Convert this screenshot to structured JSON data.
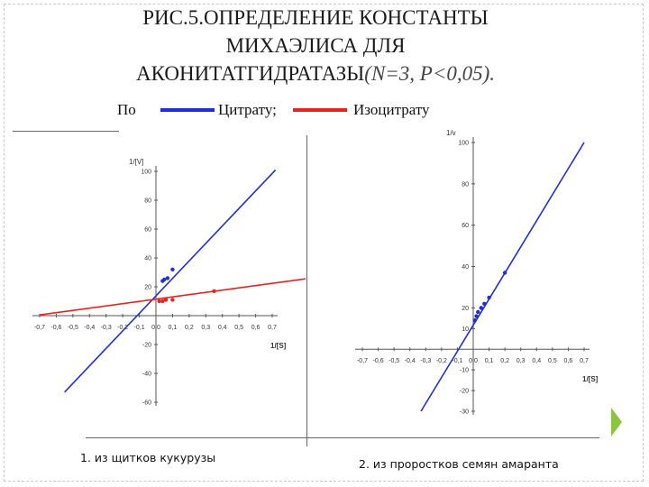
{
  "slide": {
    "title_line1": "РИС.5.ОПРЕДЕЛЕНИЕ КОНСТАНТЫ",
    "title_line2": "МИХАЭЛИСА ДЛЯ",
    "title_line3": "АКОНИТАТГИДРАТАЗЫ",
    "title_stats": "(N=3, P<0,05).",
    "legend_prefix": "По",
    "legend_citrate": "Цитрату;",
    "legend_isocitrate": "Изоцитрату",
    "caption_left": "1. из щитков кукурузы",
    "caption_right": "2. из проростков семян амаранта",
    "colors": {
      "citrate": "#1f2fd6",
      "isocitrate": "#e8231e",
      "accent": "#8bc53f"
    }
  },
  "chart_data": [
    {
      "type": "line",
      "ylabel": "1/[V]",
      "xlabel": "1/[S]",
      "xlim": [
        -0.7,
        0.7
      ],
      "ylim": [
        -60,
        100
      ],
      "x_ticks": [
        -0.7,
        -0.6,
        -0.5,
        -0.4,
        -0.3,
        -0.2,
        -0.1,
        0,
        0.1,
        0.2,
        0.3,
        0.4,
        0.5,
        0.6,
        0.7
      ],
      "x_tick_labels": [
        "-0,7",
        "-0,6",
        "-0,5",
        "-0,4",
        "-0,3",
        "-0,2",
        "-0,1",
        "0,0",
        "0,1",
        "0,2",
        "0,3",
        "0,4",
        "0,5",
        "0,6",
        "0,7"
      ],
      "y_ticks": [
        -60,
        -40,
        -20,
        20,
        40,
        60,
        80,
        100
      ],
      "y_tick_labels": [
        "-60",
        "-40",
        "-20",
        "20",
        "40",
        "60",
        "80",
        "100"
      ],
      "series": [
        {
          "name": "Цитрату",
          "color": "#1f2fd6",
          "line": [
            [
              -0.55,
              -53
            ],
            [
              0.72,
              101
            ]
          ],
          "points": [
            [
              0.04,
              24
            ],
            [
              0.05,
              25
            ],
            [
              0.07,
              26
            ],
            [
              0.1,
              32
            ]
          ]
        },
        {
          "name": "Изоцитрату",
          "color": "#e8231e",
          "line": [
            [
              -0.7,
              0.5
            ],
            [
              0.9,
              25.5
            ]
          ],
          "points": [
            [
              0.02,
              10
            ],
            [
              0.04,
              10
            ],
            [
              0.06,
              11
            ],
            [
              0.1,
              11
            ],
            [
              0.35,
              17
            ]
          ]
        }
      ]
    },
    {
      "type": "line",
      "ylabel": "1/v",
      "xlabel": "1/[S]",
      "xlim": [
        -0.7,
        0.7
      ],
      "ylim": [
        -30,
        100
      ],
      "x_ticks": [
        -0.7,
        -0.6,
        -0.5,
        -0.4,
        -0.3,
        -0.2,
        -0.1,
        0,
        0.1,
        0.2,
        0.3,
        0.4,
        0.5,
        0.6,
        0.7
      ],
      "x_tick_labels": [
        "-0,7",
        "-0,6",
        "-0,5",
        "-0,4",
        "-0,3",
        "-0,2",
        "-0,1",
        "0,0",
        "0,1",
        "0,2",
        "0,3",
        "0,4",
        "0,5",
        "0,6",
        "0,7"
      ],
      "y_ticks": [
        -30,
        -20,
        -10,
        10,
        20,
        40,
        60,
        80,
        100
      ],
      "y_tick_labels": [
        "-30",
        "-20",
        "-10",
        "10",
        "20",
        "40",
        "60",
        "80",
        "100"
      ],
      "series": [
        {
          "name": "Цитрату",
          "color": "#1f2fd6",
          "line": [
            [
              -0.33,
              -30
            ],
            [
              0.7,
              100
            ]
          ],
          "points": [
            [
              0.01,
              14
            ],
            [
              0.02,
              16
            ],
            [
              0.03,
              18
            ],
            [
              0.05,
              20
            ],
            [
              0.07,
              22
            ],
            [
              0.1,
              25
            ],
            [
              0.2,
              37
            ]
          ]
        }
      ]
    }
  ]
}
